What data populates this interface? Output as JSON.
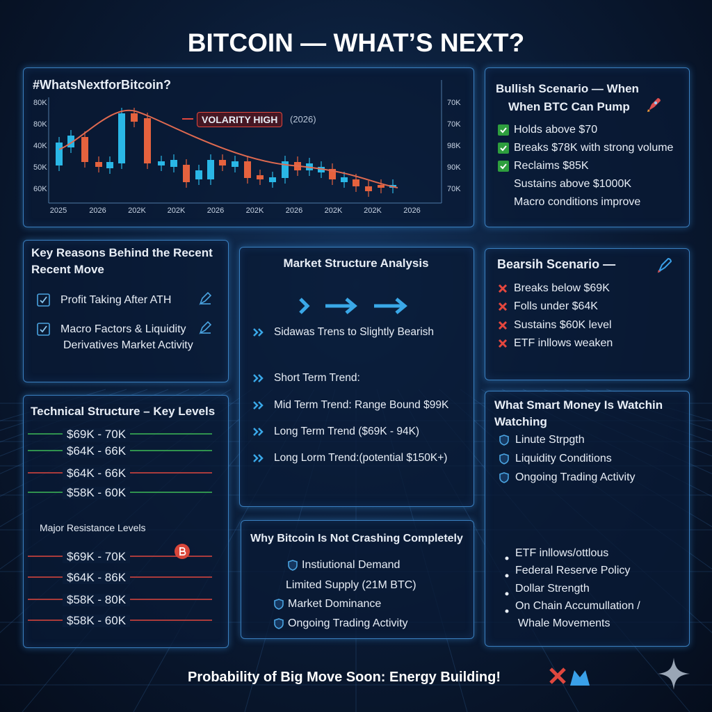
{
  "title": "BITCOIN — WHAT’S NEXT?",
  "chart_panel": {
    "hashtag": "#WhatsNextforBitcoin?",
    "badge": "VOLARITY HIGH",
    "badge_note": "(2026)",
    "left_axis": [
      "80K",
      "80K",
      "40K",
      "50K",
      "60K"
    ],
    "right_axis": [
      "70K",
      "70K",
      "98K",
      "90K",
      "70K"
    ],
    "x_axis": [
      "2025",
      "2026",
      "202K",
      "202K",
      "2026",
      "202K",
      "2026",
      "202K",
      "202K",
      "2026"
    ]
  },
  "bullish": {
    "title_lines": [
      "Bullish Scenario — When",
      "When BTC Can Pump"
    ],
    "items": [
      {
        "text": "Holds above $70",
        "icon": true
      },
      {
        "text": "Breaks $78K with strong volume",
        "icon": true
      },
      {
        "text": "Reclaims $85K",
        "icon": true
      },
      {
        "text": "Sustains above $1000K",
        "icon": false
      },
      {
        "text": "Macro conditions improve",
        "icon": false
      }
    ]
  },
  "key_reasons": {
    "title_lines": [
      "Key Reasons Behind the Recent",
      "Recent Move"
    ],
    "items": [
      {
        "text": "Profit Taking After ATH",
        "icon": true
      },
      {
        "text": "Macro Factors & Liquidity",
        "icon": true
      },
      {
        "text": "Derivatives Market Activity",
        "icon": false
      }
    ]
  },
  "market_structure": {
    "title": "Market Structure Analysis",
    "items": [
      "Sidawas Trens to Slightly Bearish",
      "Short Term Trend:",
      "Mid Term Trend: Range Bound $99K",
      "Long Term Trend  ($69K - 94K)",
      "Long Lorm Trend:(potential $150K+)"
    ]
  },
  "bearish": {
    "title": "Bearsih Scenario —",
    "items": [
      "Breaks below $69K",
      "Folls under $64K",
      "Sustains $60K level",
      "ETF inllows weaken"
    ]
  },
  "technical": {
    "title": "Technical Structure – Key Levels",
    "levels": [
      {
        "text": "$69K - 70K",
        "color": "#3dbb57"
      },
      {
        "text": "$64K - 66K",
        "color": "#3dbb57"
      },
      {
        "text": "$64K - 66K",
        "color": "#e0473e"
      },
      {
        "text": "$58K - 60K",
        "color": "#3dbb57"
      }
    ],
    "resistance_title": "Major Resistance Levels",
    "resistance": [
      {
        "text": "$69K - 70K",
        "color": "#e0473e"
      },
      {
        "text": "$64K - 86K",
        "color": "#e0473e"
      },
      {
        "text": "$58K - 80K",
        "color": "#e0473e"
      },
      {
        "text": "$58K - 60K",
        "color": "#e0473e"
      }
    ]
  },
  "why_not_crashing": {
    "title": "Why Bitcoin Is Not Crashing Completely",
    "items": [
      {
        "text": "Instiutional Demand",
        "icon": true
      },
      {
        "text": "Limited Supply (21M BTC)",
        "icon": false
      },
      {
        "text": "Market Dominance",
        "icon": true
      },
      {
        "text": "Ongoing Trading Activity",
        "icon": true
      }
    ]
  },
  "smart_money": {
    "title_lines": [
      "What Smart Money Is Watchin",
      "Watching"
    ],
    "items": [
      "Linute Strpgth",
      "Liquidity Conditions",
      "Ongoing Trading Activity"
    ],
    "bullets": [
      {
        "text": "ETF inllows/ottlous",
        "bullet": true
      },
      {
        "text": "Federal Reserve Policy",
        "bullet": true
      },
      {
        "text": "Dollar Strength",
        "bullet": true
      },
      {
        "text": "On Chain Accumullation /",
        "bullet": true
      },
      {
        "text": "Whale Movements",
        "bullet": false
      }
    ]
  },
  "footer": "Probability of Big Move Soon: Energy Building!"
}
